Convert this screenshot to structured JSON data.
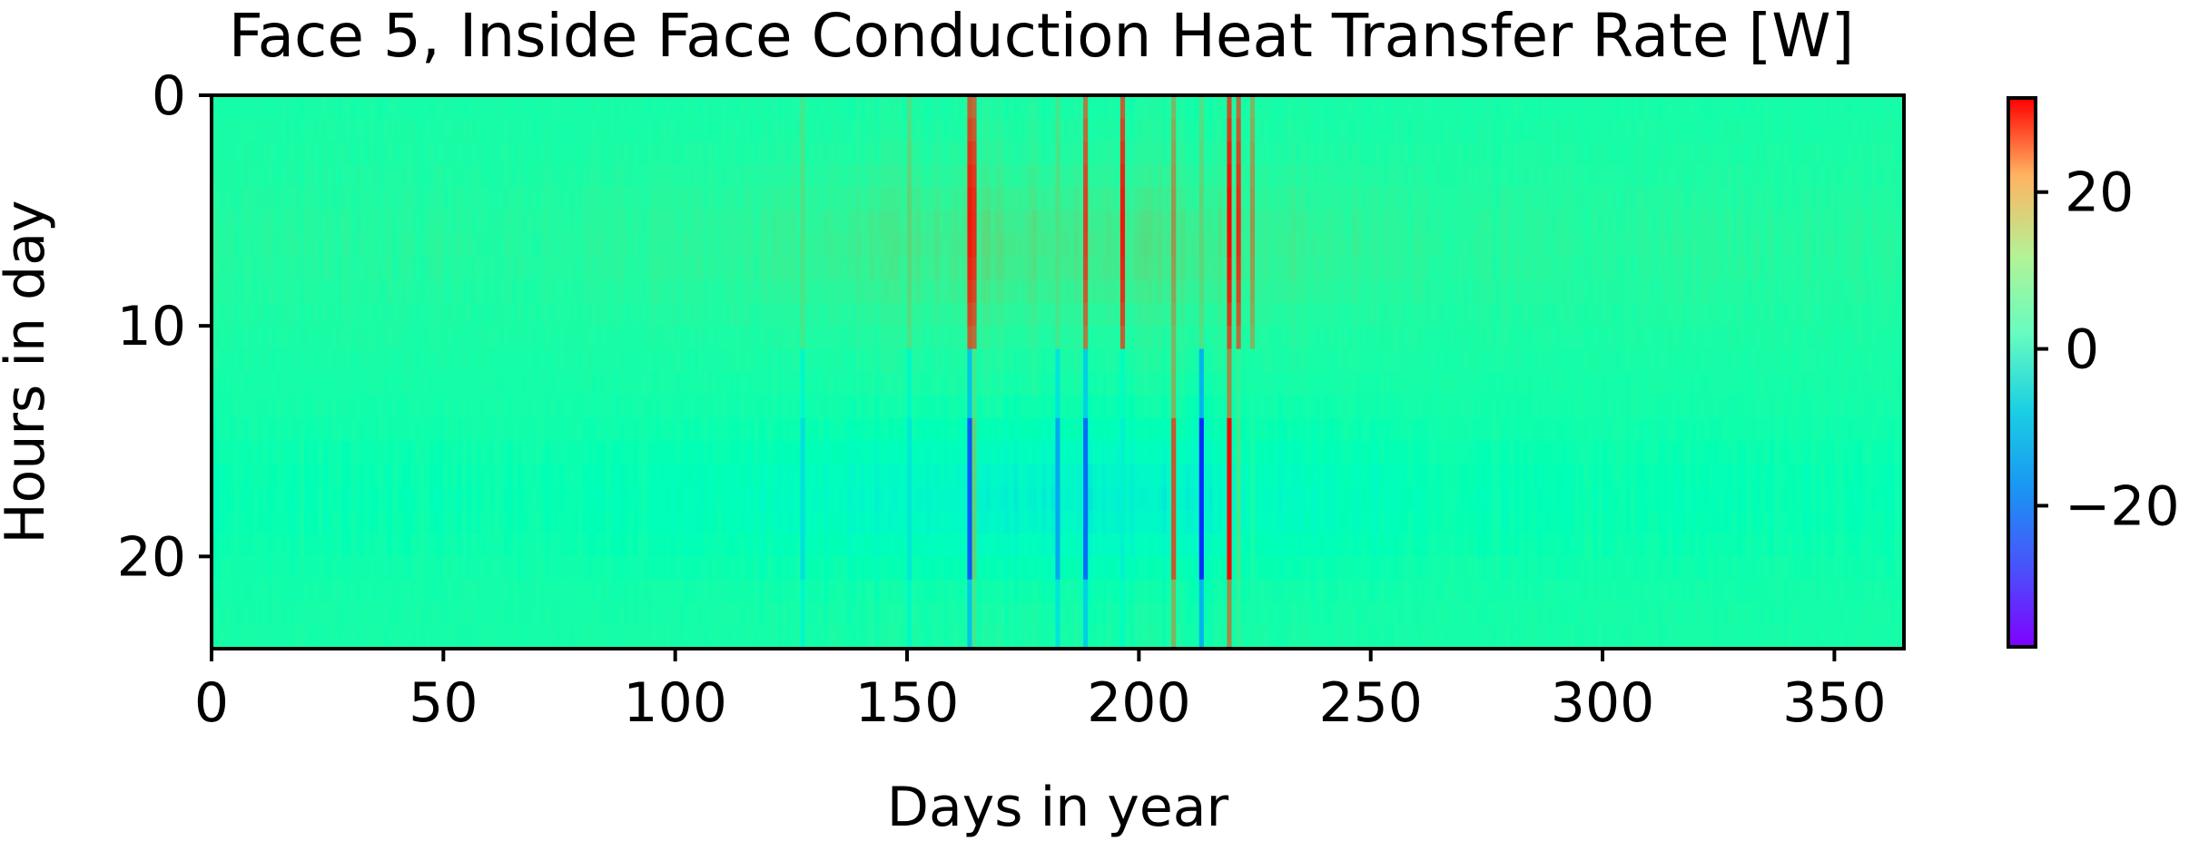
{
  "chart_data": {
    "type": "heatmap",
    "title": "Face 5, Inside Face Conduction Heat Transfer Rate [W]",
    "xlabel": "Days in year",
    "ylabel": "Hours in day",
    "xlim": [
      0,
      365
    ],
    "ylim": [
      0,
      24
    ],
    "y_inverted": true,
    "x_ticks": [
      0,
      50,
      100,
      150,
      200,
      250,
      300,
      350
    ],
    "x_tick_labels": [
      "0",
      "50",
      "100",
      "150",
      "200",
      "250",
      "300",
      "350"
    ],
    "y_ticks": [
      0,
      10,
      20
    ],
    "y_tick_labels": [
      "0",
      "10",
      "20"
    ],
    "colorbar": {
      "colormap": "rainbow",
      "range": [
        -38,
        32
      ],
      "ticks": [
        20,
        0,
        -20
      ],
      "tick_labels": [
        "20",
        "0",
        "−20"
      ]
    },
    "grid": false,
    "legend": "none",
    "data_summary": {
      "background_value": 0,
      "daytime_hours_sign": "positive",
      "afternoon_hours_sign": "negative",
      "events": [
        {
          "day": 163,
          "day_peak": 30,
          "afternoon_min": -30
        },
        {
          "day": 164,
          "day_peak": 28,
          "afternoon_min": 10
        },
        {
          "day": 182,
          "day_peak": 8,
          "afternoon_min": -22
        },
        {
          "day": 188,
          "day_peak": 26,
          "afternoon_min": -28
        },
        {
          "day": 196,
          "day_peak": 30,
          "afternoon_min": -10
        },
        {
          "day": 207,
          "day_peak": 18,
          "afternoon_min": 24
        },
        {
          "day": 213,
          "day_peak": 10,
          "afternoon_min": -34
        },
        {
          "day": 219,
          "day_peak": 32,
          "afternoon_min": 32
        },
        {
          "day": 221,
          "day_peak": 28,
          "afternoon_min": 6
        },
        {
          "day": 224,
          "day_peak": 18,
          "afternoon_min": 0
        },
        {
          "day": 127,
          "day_peak": 8,
          "afternoon_min": -14
        },
        {
          "day": 150,
          "day_peak": 10,
          "afternoon_min": -12
        }
      ]
    }
  }
}
